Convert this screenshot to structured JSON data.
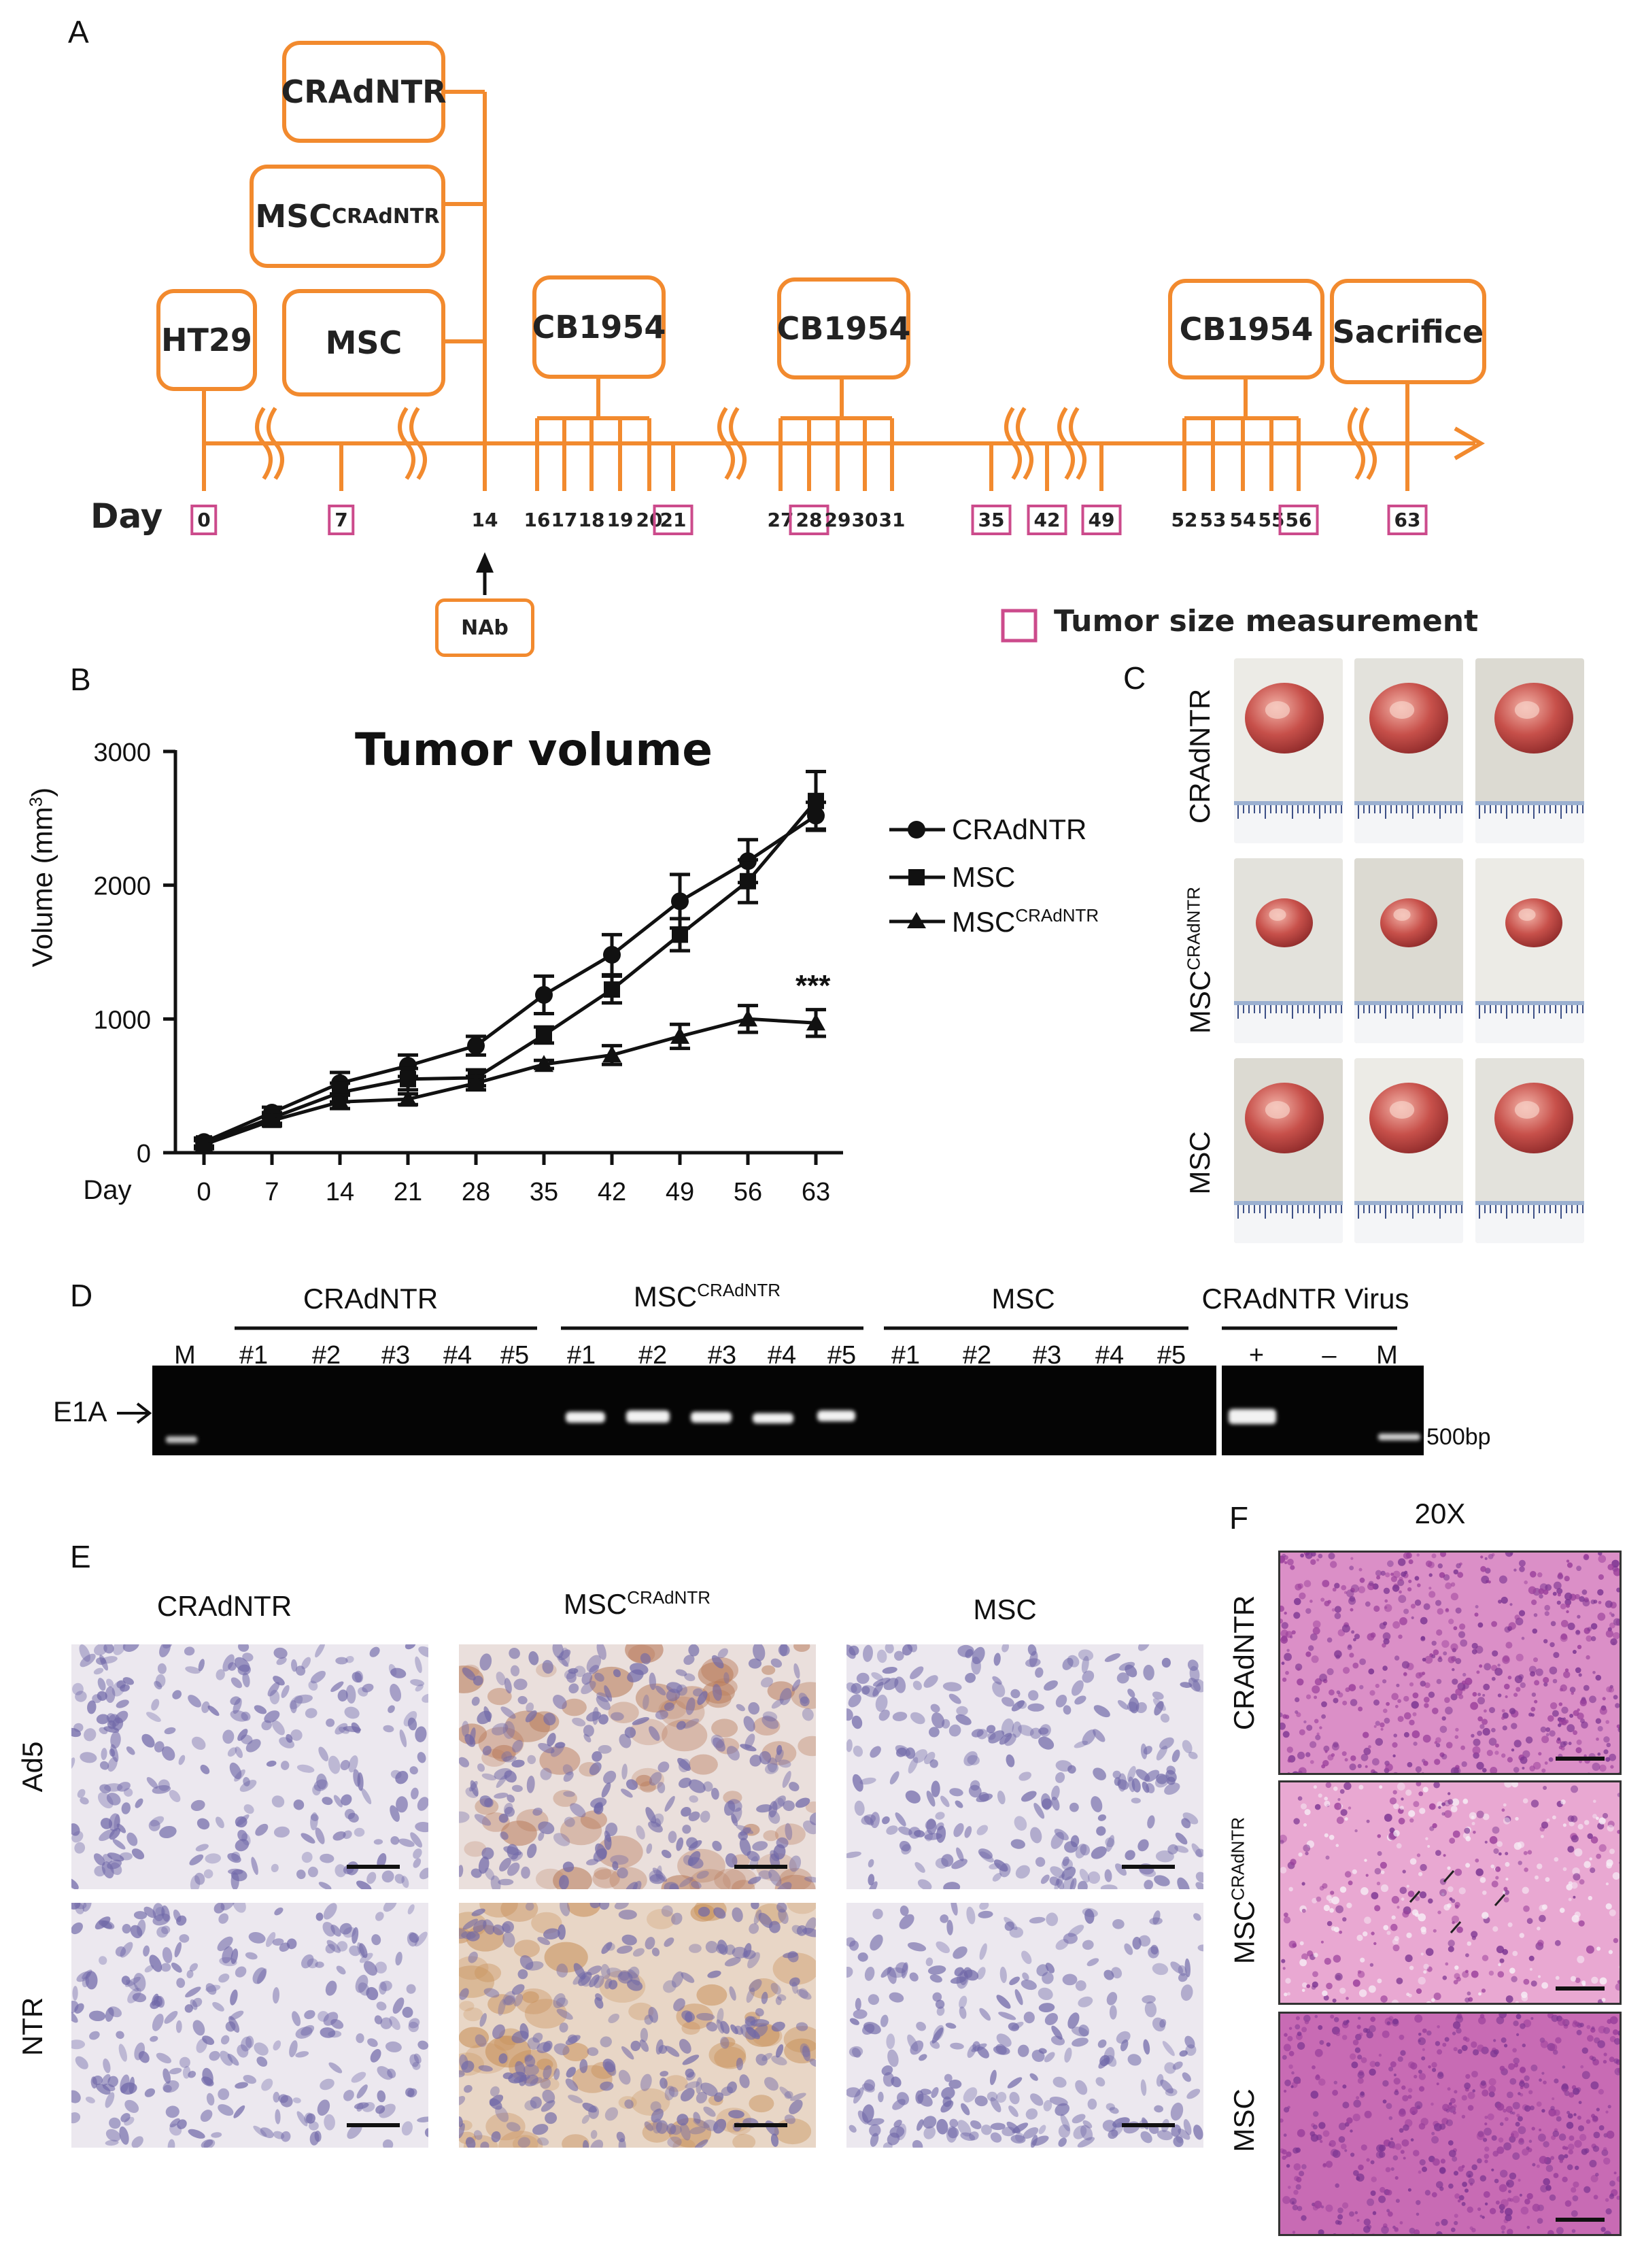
{
  "panelA": {
    "label": "A",
    "boxes": {
      "cradntr": "CRAdNTR",
      "msc_cradntr_base": "MSC",
      "msc_cradntr_sup": "CRAdNTR",
      "ht29": "HT29",
      "msc": "MSC",
      "cb1": "CB1954",
      "cb2": "CB1954",
      "cb3": "CB1954",
      "sacrifice": "Sacrifice"
    },
    "day_title": "Day",
    "days": [
      "0",
      "7",
      "14",
      "16",
      "17",
      "18",
      "19",
      "20",
      "21",
      "27",
      "28",
      "29",
      "30",
      "31",
      "35",
      "42",
      "49",
      "52",
      "53",
      "54",
      "55",
      "56",
      "63"
    ],
    "measured_days": [
      "0",
      "7",
      "21",
      "28",
      "35",
      "42",
      "49",
      "56",
      "63"
    ],
    "nab": "NAb",
    "legend": "Tumor size measurement",
    "colors": {
      "orange": "#f28a2e",
      "magenta": "#cc4b8c"
    }
  },
  "panelB": {
    "label": "B",
    "legend": {
      "cradntr": "CRAdNTR",
      "msc": "MSC",
      "msc_cradntr_base": "MSC",
      "msc_cradntr_sup": "CRAdNTR"
    },
    "significance": "***",
    "ylabel_base": "Volume (mm",
    "ylabel_sup": "3",
    "ylabel_end": ")"
  },
  "chart_data": {
    "type": "line",
    "title": "Tumor volume",
    "xlabel": "Day",
    "ylabel": "Volume (mm3)",
    "x": [
      0,
      7,
      14,
      21,
      28,
      35,
      42,
      49,
      56,
      63
    ],
    "ylim": [
      0,
      3000
    ],
    "yticks": [
      0,
      1000,
      2000,
      3000
    ],
    "series": [
      {
        "name": "CRAdNTR",
        "marker": "circle",
        "values": [
          80,
          300,
          520,
          650,
          800,
          1180,
          1480,
          1880,
          2180,
          2520
        ],
        "errors": [
          30,
          40,
          80,
          80,
          70,
          140,
          150,
          200,
          160,
          100
        ]
      },
      {
        "name": "MSC",
        "marker": "square",
        "values": [
          70,
          260,
          450,
          550,
          560,
          880,
          1220,
          1630,
          2030,
          2630
        ],
        "errors": [
          30,
          40,
          70,
          80,
          60,
          60,
          100,
          120,
          160,
          220
        ]
      },
      {
        "name": "MSCCRAdNTR",
        "marker": "triangle",
        "values": [
          60,
          240,
          380,
          400,
          520,
          660,
          730,
          870,
          1000,
          970
        ],
        "errors": [
          30,
          40,
          50,
          40,
          50,
          30,
          70,
          90,
          100,
          100
        ]
      }
    ]
  },
  "panelC": {
    "label": "C",
    "rows": [
      "CRAdNTR",
      "MSC",
      "MSC"
    ],
    "row_sup": [
      "",
      "CRAdNTR",
      ""
    ]
  },
  "panelD": {
    "label": "D",
    "groups": [
      "CRAdNTR",
      "MSC",
      "MSC",
      "CRAdNTR Virus"
    ],
    "group_sup": [
      "",
      "CRAdNTR",
      "",
      ""
    ],
    "samples": [
      "#1",
      "#2",
      "#3",
      "#4",
      "#5"
    ],
    "marker": "M",
    "ctrl_plus": "+",
    "ctrl_minus": "–",
    "band_label": "E1A",
    "size_label": "500bp"
  },
  "panelE": {
    "label": "E",
    "columns": [
      "CRAdNTR",
      "MSC",
      "MSC"
    ],
    "column_sup": [
      "",
      "CRAdNTR",
      ""
    ],
    "rows": [
      "Ad5",
      "NTR"
    ]
  },
  "panelF": {
    "label": "F",
    "magnification": "20X",
    "rows": [
      "CRAdNTR",
      "MSC",
      "MSC"
    ],
    "row_sup": [
      "",
      "CRAdNTR",
      ""
    ]
  }
}
